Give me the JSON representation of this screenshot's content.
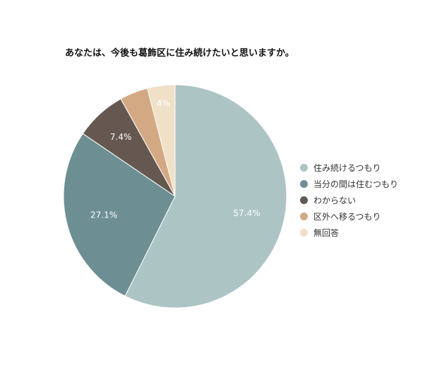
{
  "chart_data": {
    "type": "pie",
    "title": "あなたは、今後も葛飾区に住み続けたいと思いますか。",
    "categories": [
      "住み続けるつもり",
      "当分の間は住むつもり",
      "わからない",
      "区外へ移るつもり",
      "無回答"
    ],
    "values": [
      57.4,
      27.1,
      7.4,
      4.1,
      4.0
    ],
    "labels": [
      "57.4%",
      "27.1%",
      "7.4%",
      "",
      "4%"
    ],
    "colors": [
      "#adc4c5",
      "#6d8f94",
      "#645850",
      "#d3a984",
      "#f0e0c8"
    ],
    "legend": "right"
  }
}
